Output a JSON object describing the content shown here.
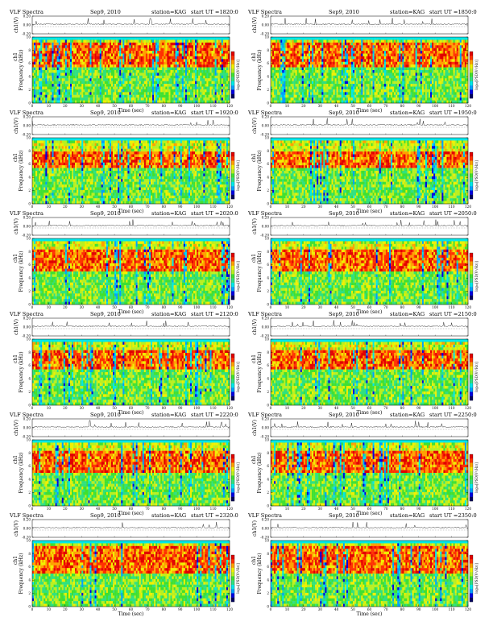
{
  "colors": {
    "scale": [
      "#000060",
      "#0000e0",
      "#00a0ff",
      "#00e8e8",
      "#30e080",
      "#40e030",
      "#b8f020",
      "#f0f000",
      "#ffa000",
      "#ff3000",
      "#e00000"
    ],
    "trace": "#000000"
  },
  "header": {
    "title": "VLF Spectra",
    "date": "Sep9, 2010",
    "station": "station=KAG",
    "start_prefix": "start  UT  ="
  },
  "labels": {
    "signal_axis": "ch1(V)",
    "channel": "ch1",
    "freq_axis": "Frequency (kHz)",
    "time_axis": "Time  (sec)",
    "colorbar_label": "log₁₀[PSD(V²/Hz)]"
  },
  "chart_data": [
    {
      "type": "heatmap",
      "title": "VLF Spectra",
      "start_ut": "1820:0",
      "xlabel": "Time  (sec)",
      "ylabel": "Frequency (kHz)",
      "xlim": [
        0,
        120
      ],
      "ylim": [
        0,
        10
      ],
      "xticks": [
        0,
        10,
        20,
        30,
        40,
        50,
        60,
        70,
        80,
        90,
        100,
        110,
        120
      ],
      "yticks": [
        0,
        2,
        4,
        6,
        8,
        10
      ],
      "signal_yticks": [
        "0.20",
        "0.00",
        "-0.20"
      ],
      "signal_ylim": [
        -0.2,
        0.2
      ],
      "intensity_band_khz": [
        5.5,
        9
      ]
    },
    {
      "type": "heatmap",
      "title": "VLF Spectra",
      "start_ut": "1850:0",
      "xlabel": "Time  (sec)",
      "ylabel": "Frequency (kHz)",
      "xlim": [
        0,
        120
      ],
      "ylim": [
        0,
        10
      ],
      "xticks": [
        0,
        10,
        20,
        30,
        40,
        50,
        60,
        70,
        80,
        90,
        100,
        110,
        120
      ],
      "yticks": [
        0,
        2,
        4,
        6,
        8,
        10
      ],
      "signal_yticks": [
        "0.20",
        "0.00",
        "-0.20"
      ],
      "signal_ylim": [
        -0.2,
        0.2
      ],
      "intensity_band_khz": [
        5.5,
        9
      ]
    },
    {
      "type": "heatmap",
      "title": "VLF Spectra",
      "start_ut": "1920:0",
      "xlabel": "Time  (sec)",
      "ylabel": "Frequency (kHz)",
      "xlim": [
        0,
        120
      ],
      "ylim": [
        0,
        10
      ],
      "xticks": [
        0,
        10,
        20,
        30,
        40,
        50,
        60,
        70,
        80,
        90,
        100,
        110,
        120
      ],
      "yticks": [
        0,
        2,
        4,
        6,
        8,
        10
      ],
      "signal_yticks": [
        "0.20",
        "0.00",
        "-0.20"
      ],
      "signal_ylim": [
        -0.2,
        0.2
      ],
      "intensity_band_khz": [
        5.5,
        8
      ]
    },
    {
      "type": "heatmap",
      "title": "VLF Spectra",
      "start_ut": "1950:0",
      "xlabel": "Time  (sec)",
      "ylabel": "Frequency (kHz)",
      "xlim": [
        0,
        120
      ],
      "ylim": [
        0,
        10
      ],
      "xticks": [
        0,
        10,
        20,
        30,
        40,
        50,
        60,
        70,
        80,
        90,
        100,
        110,
        120
      ],
      "yticks": [
        0,
        2,
        4,
        6,
        8,
        10
      ],
      "signal_yticks": [
        "0.20",
        "0.00",
        "-0.20"
      ],
      "signal_ylim": [
        -0.2,
        0.2
      ],
      "intensity_band_khz": [
        5.5,
        8
      ]
    },
    {
      "type": "heatmap",
      "title": "VLF Spectra",
      "start_ut": "2020:0",
      "xlabel": "Time  (sec)",
      "ylabel": "Frequency (kHz)",
      "xlim": [
        0,
        120
      ],
      "ylim": [
        0,
        10
      ],
      "xticks": [
        0,
        10,
        20,
        30,
        40,
        50,
        60,
        70,
        80,
        90,
        100,
        110,
        120
      ],
      "yticks": [
        0,
        2,
        4,
        6,
        8,
        10
      ],
      "signal_yticks": [
        "0.20",
        "0.00",
        "-0.20"
      ],
      "signal_ylim": [
        -0.2,
        0.2
      ],
      "intensity_band_khz": [
        5,
        8.5
      ]
    },
    {
      "type": "heatmap",
      "title": "VLF Spectra",
      "start_ut": "2050:0",
      "xlabel": "Time  (sec)",
      "ylabel": "Frequency (kHz)",
      "xlim": [
        0,
        120
      ],
      "ylim": [
        0,
        10
      ],
      "xticks": [
        0,
        10,
        20,
        30,
        40,
        50,
        60,
        70,
        80,
        90,
        100,
        110,
        120
      ],
      "yticks": [
        0,
        2,
        4,
        6,
        8,
        10
      ],
      "signal_yticks": [
        "0.20",
        "0.00",
        "-0.20"
      ],
      "signal_ylim": [
        -0.2,
        0.2
      ],
      "intensity_band_khz": [
        5,
        8.5
      ]
    },
    {
      "type": "heatmap",
      "title": "VLF Spectra",
      "start_ut": "2120:0",
      "xlabel": "Time  (sec)",
      "ylabel": "Frequency (kHz)",
      "xlim": [
        0,
        120
      ],
      "ylim": [
        0,
        10
      ],
      "xticks": [
        0,
        10,
        20,
        30,
        40,
        50,
        60,
        70,
        80,
        90,
        100,
        110,
        120
      ],
      "yticks": [
        0,
        2,
        4,
        6,
        8,
        10
      ],
      "signal_yticks": [
        "0.20",
        "0.00",
        "-0.20"
      ],
      "signal_ylim": [
        -0.2,
        0.2
      ],
      "intensity_band_khz": [
        5.5,
        8.5
      ]
    },
    {
      "type": "heatmap",
      "title": "VLF Spectra",
      "start_ut": "2150:0",
      "xlabel": "Time  (sec)",
      "ylabel": "Frequency (kHz)",
      "xlim": [
        0,
        120
      ],
      "ylim": [
        0,
        10
      ],
      "xticks": [
        0,
        10,
        20,
        30,
        40,
        50,
        60,
        70,
        80,
        90,
        100,
        110,
        120
      ],
      "yticks": [
        0,
        2,
        4,
        6,
        8,
        10
      ],
      "signal_yticks": [
        "0.20",
        "0.00",
        "-0.20"
      ],
      "signal_ylim": [
        -0.2,
        0.2
      ],
      "intensity_band_khz": [
        5.5,
        8.5
      ]
    },
    {
      "type": "heatmap",
      "title": "VLF Spectra",
      "start_ut": "2220:0",
      "xlabel": "Time  (sec)",
      "ylabel": "Frequency (kHz)",
      "xlim": [
        0,
        120
      ],
      "ylim": [
        0,
        10
      ],
      "xticks": [
        0,
        10,
        20,
        30,
        40,
        50,
        60,
        70,
        80,
        90,
        100,
        110,
        120
      ],
      "yticks": [
        0,
        2,
        4,
        6,
        8,
        10
      ],
      "signal_yticks": [
        "0.20",
        "0.00",
        "-0.20"
      ],
      "signal_ylim": [
        -0.2,
        0.2
      ],
      "intensity_band_khz": [
        5,
        8.5
      ]
    },
    {
      "type": "heatmap",
      "title": "VLF Spectra",
      "start_ut": "2250:0",
      "xlabel": "Time  (sec)",
      "ylabel": "Frequency (kHz)",
      "xlim": [
        0,
        120
      ],
      "ylim": [
        0,
        10
      ],
      "xticks": [
        0,
        10,
        20,
        30,
        40,
        50,
        60,
        70,
        80,
        90,
        100,
        110,
        120
      ],
      "yticks": [
        0,
        2,
        4,
        6,
        8,
        10
      ],
      "signal_yticks": [
        "0.20",
        "0.00",
        "-0.20"
      ],
      "signal_ylim": [
        -0.2,
        0.2
      ],
      "intensity_band_khz": [
        5,
        8.5
      ]
    },
    {
      "type": "heatmap",
      "title": "VLF Spectra",
      "start_ut": "2320:0",
      "xlabel": "Time  (sec)",
      "ylabel": "Frequency (kHz)",
      "xlim": [
        0,
        120
      ],
      "ylim": [
        0,
        10
      ],
      "xticks": [
        0,
        10,
        20,
        30,
        40,
        50,
        60,
        70,
        80,
        90,
        100,
        110,
        120
      ],
      "yticks": [
        0,
        2,
        4,
        6,
        8,
        10
      ],
      "signal_yticks": [
        "0.20",
        "0.00",
        "-0.20"
      ],
      "signal_ylim": [
        -0.2,
        0.2
      ],
      "intensity_band_khz": [
        5,
        9
      ]
    },
    {
      "type": "heatmap",
      "title": "VLF Spectra",
      "start_ut": "2350:0",
      "xlabel": "Time  (sec)",
      "ylabel": "Frequency (kHz)",
      "xlim": [
        0,
        120
      ],
      "ylim": [
        0,
        10
      ],
      "xticks": [
        0,
        10,
        20,
        30,
        40,
        50,
        60,
        70,
        80,
        90,
        100,
        110,
        120
      ],
      "yticks": [
        0,
        2,
        4,
        6,
        8,
        10
      ],
      "signal_yticks": [
        "0.20",
        "0.00",
        "-0.20"
      ],
      "signal_ylim": [
        -0.2,
        0.2
      ],
      "intensity_band_khz": [
        5,
        9
      ]
    }
  ]
}
